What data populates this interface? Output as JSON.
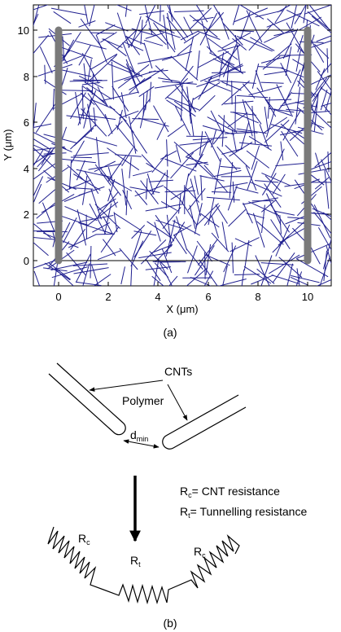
{
  "panel_a": {
    "caption": "(a)",
    "xlabel": "X (μm)",
    "ylabel": "Y (μm)",
    "x_ticks": [
      "0",
      "2",
      "4",
      "6",
      "8",
      "10"
    ],
    "y_ticks": [
      "0",
      "2",
      "4",
      "6",
      "8",
      "10"
    ],
    "line_color": "#1f1f8f",
    "electrode_color": "#7a7a7a"
  },
  "panel_b": {
    "caption": "(b)",
    "cnts_label": "CNTs",
    "polymer_label": "Polymer",
    "dmin_main": "d",
    "dmin_sub": "min",
    "legend_rc_main": "R",
    "legend_rc_sub": "c",
    "legend_rc_text": "= CNT resistance",
    "legend_rt_main": "R",
    "legend_rt_sub": "t",
    "legend_rt_text": "= Tunnelling resistance",
    "rc_left_main": "R",
    "rc_left_sub": "c",
    "rt_main": "R",
    "rt_sub": "t",
    "rc_right_main": "R",
    "rc_right_sub": "c"
  }
}
